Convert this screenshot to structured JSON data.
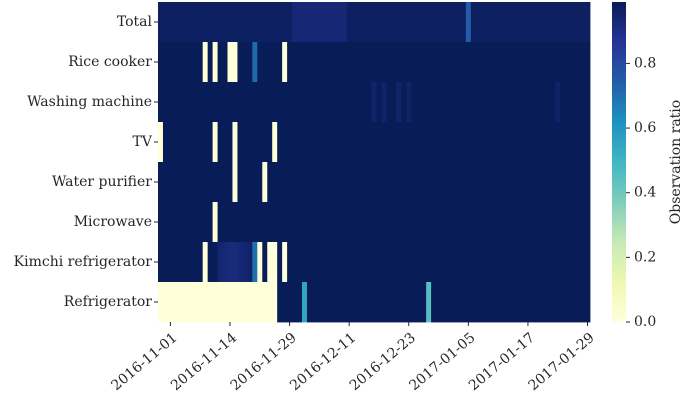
{
  "chart_data": {
    "type": "heatmap",
    "categories": [
      null,
      null,
      "2016-11-01",
      null,
      null,
      null,
      null,
      null,
      null,
      null,
      null,
      null,
      null,
      null,
      "2016-11-14",
      null,
      null,
      null,
      null,
      null,
      null,
      null,
      null,
      null,
      null,
      null,
      "2016-11-29",
      null,
      null,
      null,
      null,
      null,
      null,
      null,
      null,
      null,
      null,
      null,
      "2016-12-11",
      null,
      null,
      null,
      null,
      null,
      null,
      null,
      null,
      null,
      null,
      null,
      "2016-12-23",
      null,
      null,
      null,
      null,
      null,
      null,
      null,
      null,
      null,
      null,
      null,
      "2017-01-05",
      null,
      null,
      null,
      null,
      null,
      null,
      null,
      null,
      null,
      null,
      null,
      "2017-01-17",
      null,
      null,
      null,
      null,
      null,
      null,
      null,
      null,
      null,
      null,
      null,
      "2017-01-29"
    ],
    "series": [
      {
        "name": "Total",
        "values": [
          0.97,
          0.97,
          0.97,
          0.97,
          0.97,
          0.97,
          0.97,
          0.97,
          0.97,
          0.97,
          0.97,
          0.97,
          0.97,
          0.97,
          0.97,
          0.97,
          0.97,
          0.97,
          0.97,
          0.97,
          0.97,
          0.97,
          0.97,
          0.97,
          0.97,
          0.97,
          0.97,
          0.93,
          0.93,
          0.93,
          0.93,
          0.93,
          0.93,
          0.93,
          0.93,
          0.93,
          0.93,
          0.93,
          0.97,
          0.97,
          0.97,
          0.97,
          0.97,
          0.97,
          0.97,
          0.97,
          0.97,
          0.97,
          0.97,
          0.97,
          0.97,
          0.97,
          0.97,
          0.97,
          0.97,
          0.97,
          0.97,
          0.97,
          0.97,
          0.97,
          0.97,
          0.97,
          0.75,
          0.97,
          0.97,
          0.97,
          0.97,
          0.97,
          0.97,
          0.97,
          0.97,
          0.97,
          0.97,
          0.97,
          0.97,
          0.97,
          0.97,
          0.97,
          0.97,
          0.97,
          0.97,
          0.97,
          0.97,
          0.97,
          0.97,
          0.97,
          0.97
        ]
      },
      {
        "name": "Rice cooker",
        "values": [
          0.99,
          0.99,
          0.99,
          0.99,
          0.99,
          0.99,
          0.99,
          0.99,
          0.99,
          0,
          0.99,
          0,
          0.99,
          0.99,
          0,
          0,
          0.99,
          0.99,
          0.99,
          0.72,
          0.99,
          0.99,
          0.99,
          0.99,
          0.99,
          0,
          0.99,
          0.99,
          0.99,
          0.99,
          0.99,
          0.99,
          0.99,
          0.99,
          0.99,
          0.99,
          0.99,
          0.99,
          0.99,
          0.99,
          0.99,
          0.99,
          0.99,
          0.99,
          0.99,
          0.99,
          0.99,
          0.99,
          0.99,
          0.99,
          0.99,
          0.99,
          0.99,
          0.99,
          0.99,
          0.99,
          0.99,
          0.99,
          0.99,
          0.99,
          0.99,
          0.99,
          0.99,
          0.99,
          0.99,
          0.99,
          0.99,
          0.99,
          0.99,
          0.99,
          0.99,
          0.99,
          0.99,
          0.99,
          0.99,
          0.99,
          0.99,
          0.99,
          0.99,
          0.99,
          0.99,
          0.99,
          0.99,
          0.99,
          0.99,
          0.99,
          0.99
        ]
      },
      {
        "name": "Washing machine",
        "values": [
          0.99,
          0.99,
          0.99,
          0.99,
          0.99,
          0.99,
          0.99,
          0.99,
          0.99,
          0.99,
          0.99,
          0.99,
          0.99,
          0.99,
          0.99,
          0.99,
          0.99,
          0.99,
          0.99,
          0.99,
          0.99,
          0.99,
          0.99,
          0.99,
          0.99,
          0.99,
          0.99,
          0.99,
          0.99,
          0.99,
          0.99,
          0.99,
          0.99,
          0.99,
          0.99,
          0.99,
          0.99,
          0.99,
          0.99,
          0.99,
          0.99,
          0.99,
          0.99,
          0.95,
          0.99,
          0.96,
          0.99,
          0.99,
          0.95,
          0.99,
          0.96,
          0.99,
          0.99,
          0.99,
          0.99,
          0.99,
          0.99,
          0.99,
          0.99,
          0.99,
          0.99,
          0.99,
          0.99,
          0.99,
          0.99,
          0.99,
          0.99,
          0.99,
          0.99,
          0.99,
          0.99,
          0.99,
          0.99,
          0.99,
          0.99,
          0.99,
          0.99,
          0.99,
          0.99,
          0.99,
          0.96,
          0.99,
          0.99,
          0.99,
          0.99,
          0.99,
          0.99
        ]
      },
      {
        "name": "TV",
        "values": [
          0,
          0.99,
          0.99,
          0.99,
          0.99,
          0.99,
          0.99,
          0.99,
          0.99,
          0.99,
          0.99,
          0,
          0.99,
          0.99,
          0.99,
          0,
          0.99,
          0.99,
          0.99,
          0.99,
          0.99,
          0.99,
          0.99,
          0,
          0.99,
          0.99,
          0.99,
          0.99,
          0.99,
          0.99,
          0.99,
          0.99,
          0.99,
          0.99,
          0.99,
          0.99,
          0.99,
          0.99,
          0.99,
          0.99,
          0.99,
          0.99,
          0.99,
          0.99,
          0.99,
          0.99,
          0.99,
          0.99,
          0.99,
          0.99,
          0.99,
          0.99,
          0.99,
          0.99,
          0.99,
          0.99,
          0.99,
          0.99,
          0.99,
          0.99,
          0.99,
          0.99,
          0.99,
          0.99,
          0.99,
          0.99,
          0.99,
          0.99,
          0.99,
          0.99,
          0.99,
          0.99,
          0.99,
          0.99,
          0.99,
          0.99,
          0.99,
          0.99,
          0.99,
          0.99,
          0.99,
          0.99,
          0.99,
          0.99,
          0.99,
          0.99,
          0.99
        ]
      },
      {
        "name": "Water purifier",
        "values": [
          0.99,
          0.99,
          0.99,
          0.99,
          0.99,
          0.99,
          0.99,
          0.99,
          0.99,
          0.99,
          0.99,
          0.99,
          0.99,
          0.99,
          0.99,
          0,
          0.99,
          0.99,
          0.99,
          0.99,
          0.99,
          0,
          0.99,
          0.99,
          0.99,
          0.99,
          0.99,
          0.99,
          0.99,
          0.99,
          0.99,
          0.99,
          0.99,
          0.99,
          0.99,
          0.99,
          0.99,
          0.99,
          0.99,
          0.99,
          0.99,
          0.99,
          0.99,
          0.99,
          0.99,
          0.99,
          0.99,
          0.99,
          0.99,
          0.99,
          0.99,
          0.99,
          0.99,
          0.99,
          0.99,
          0.99,
          0.99,
          0.99,
          0.99,
          0.99,
          0.99,
          0.99,
          0.99,
          0.99,
          0.99,
          0.99,
          0.99,
          0.99,
          0.99,
          0.99,
          0.99,
          0.99,
          0.99,
          0.99,
          0.99,
          0.99,
          0.99,
          0.99,
          0.99,
          0.99,
          0.99,
          0.99,
          0.99,
          0.99,
          0.99,
          0.99,
          0.99
        ]
      },
      {
        "name": "Microwave",
        "values": [
          0.99,
          0.99,
          0.99,
          0.99,
          0.99,
          0.99,
          0.99,
          0.99,
          0.99,
          0.99,
          0.99,
          0,
          0.99,
          0.99,
          0.99,
          0.99,
          0.99,
          0.99,
          0.99,
          0.99,
          0.99,
          0.99,
          0.99,
          0.99,
          0.99,
          0.99,
          0.99,
          0.99,
          0.99,
          0.99,
          0.99,
          0.99,
          0.99,
          0.99,
          0.99,
          0.99,
          0.99,
          0.99,
          0.99,
          0.99,
          0.99,
          0.99,
          0.99,
          0.99,
          0.99,
          0.99,
          0.99,
          0.99,
          0.99,
          0.99,
          0.99,
          0.99,
          0.99,
          0.99,
          0.99,
          0.99,
          0.99,
          0.99,
          0.99,
          0.99,
          0.99,
          0.99,
          0.99,
          0.99,
          0.99,
          0.99,
          0.99,
          0.99,
          0.99,
          0.99,
          0.99,
          0.99,
          0.99,
          0.99,
          0.99,
          0.99,
          0.99,
          0.99,
          0.99,
          0.99,
          0.99,
          0.99,
          0.99,
          0.99,
          0.99,
          0.99,
          0.99
        ]
      },
      {
        "name": "Kimchi refrigerator",
        "values": [
          0.99,
          0.99,
          0.99,
          0.99,
          0.99,
          0.99,
          0.99,
          0.99,
          0.99,
          0,
          0.99,
          0.99,
          0.94,
          0.93,
          0.92,
          0.92,
          0.93,
          0.94,
          0.95,
          0.7,
          0,
          0.99,
          0,
          0,
          0.99,
          0,
          0.99,
          0.99,
          0.99,
          0.99,
          0.99,
          0.99,
          0.99,
          0.99,
          0.99,
          0.99,
          0.99,
          0.99,
          0.99,
          0.99,
          0.99,
          0.99,
          0.99,
          0.99,
          0.99,
          0.99,
          0.99,
          0.99,
          0.99,
          0.99,
          0.99,
          0.99,
          0.99,
          0.99,
          0.99,
          0.99,
          0.99,
          0.99,
          0.99,
          0.99,
          0.99,
          0.99,
          0.99,
          0.99,
          0.99,
          0.99,
          0.99,
          0.99,
          0.99,
          0.99,
          0.99,
          0.99,
          0.99,
          0.99,
          0.99,
          0.99,
          0.99,
          0.99,
          0.99,
          0.99,
          0.99,
          0.99,
          0.99,
          0.99,
          0.99,
          0.99,
          0.99
        ]
      },
      {
        "name": "Refrigerator",
        "values": [
          0,
          0,
          0,
          0,
          0,
          0,
          0,
          0,
          0,
          0,
          0,
          0,
          0,
          0,
          0,
          0,
          0,
          0,
          0,
          0,
          0,
          0,
          0,
          0,
          0.99,
          0.99,
          0.99,
          0.99,
          0.99,
          0.55,
          0.99,
          0.99,
          0.99,
          0.99,
          0.99,
          0.99,
          0.99,
          0.99,
          0.99,
          0.99,
          0.99,
          0.99,
          0.99,
          0.99,
          0.99,
          0.99,
          0.99,
          0.99,
          0.99,
          0.99,
          0.99,
          0.99,
          0.99,
          0.99,
          0.45,
          0.99,
          0.99,
          0.99,
          0.99,
          0.99,
          0.99,
          0.99,
          0.99,
          0.99,
          0.99,
          0.99,
          0.99,
          0.99,
          0.99,
          0.99,
          0.99,
          0.99,
          0.99,
          0.99,
          0.99,
          0.99,
          0.99,
          0.99,
          0.99,
          0.99,
          0.99,
          0.99,
          0.99,
          0.99,
          0.99,
          0.99,
          0.99
        ]
      }
    ],
    "colormap": [
      "#ffffd9",
      "#edf8b1",
      "#c7e9b4",
      "#7fcdbb",
      "#41b6c4",
      "#1d91c0",
      "#225ea8",
      "#253494",
      "#081d58"
    ],
    "clim": [
      0,
      0.99
    ],
    "cticks": [
      {
        "value": 0,
        "label": "0.0"
      },
      0.2,
      0.4,
      0.6,
      0.8
    ],
    "colorbar_label": "Observation ratio"
  }
}
